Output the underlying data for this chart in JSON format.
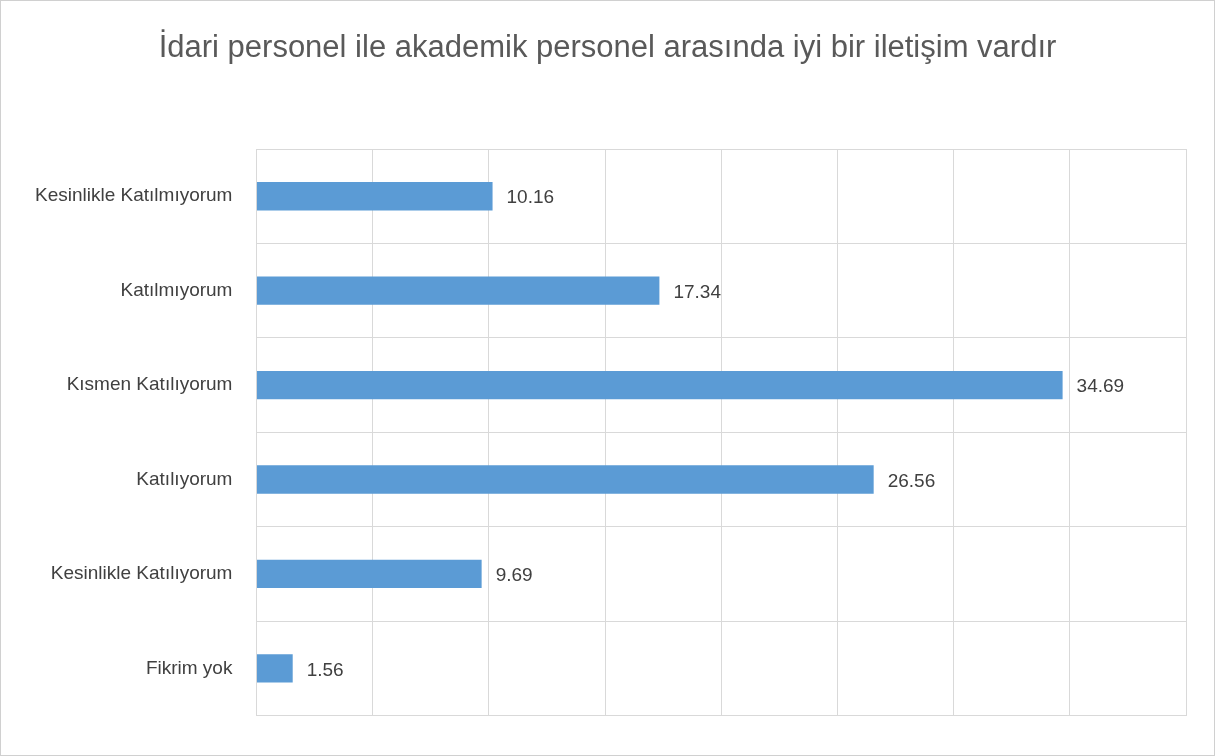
{
  "chart_data": {
    "type": "bar",
    "orientation": "horizontal",
    "title": "İdari personel ile akademik personel arasında iyi bir iletişim vardır",
    "categories": [
      "Kesinlikle Katılmıyorum",
      "Katılmıyorum",
      "Kısmen Katılıyorum",
      "Katılıyorum",
      "Kesinlikle Katılıyorum",
      "Fikrim yok"
    ],
    "values": [
      10.16,
      17.34,
      34.69,
      26.56,
      9.69,
      1.56
    ],
    "color": "#5b9bd5",
    "xlim": [
      0,
      40
    ],
    "xticks": [
      {
        "value": 0,
        "label": null
      },
      {
        "value": 5,
        "label": null
      },
      {
        "value": 10,
        "label": null
      },
      {
        "value": 15,
        "label": null
      },
      {
        "value": 20,
        "label": null
      },
      {
        "value": 25,
        "label": null
      },
      {
        "value": 30,
        "label": null
      },
      {
        "value": 35,
        "label": null
      },
      {
        "value": 40,
        "label": null
      }
    ],
    "tick_labels": "y",
    "grid": true,
    "data_labels": true,
    "legend": false
  }
}
